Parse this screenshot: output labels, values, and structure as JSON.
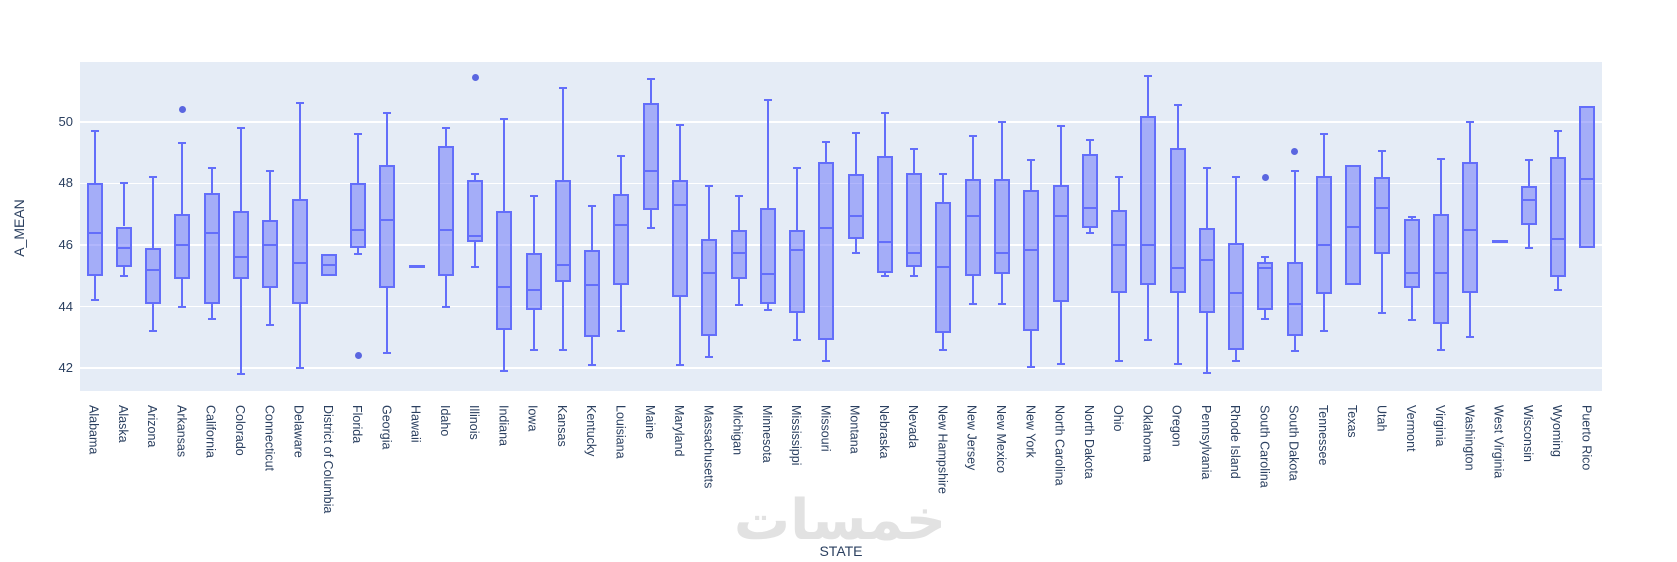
{
  "watermark": {
    "text": "خمسات"
  },
  "chart_data": {
    "type": "box",
    "title": "",
    "xlabel": "STATE",
    "ylabel": "A_MEAN",
    "ylim": [
      41.26,
      51.94
    ],
    "yticks": [
      42,
      44,
      46,
      48,
      50
    ],
    "grid": true,
    "legend_position": "none",
    "plot_bg": "#e5ecf6",
    "grid_color": "#ffffff",
    "box_line_color": "#636efa",
    "box_fill_color": "rgba(99,110,250,0.5)",
    "outlier_color": "#5a66e0",
    "text_color": "#2a3f5f",
    "categories": [
      "Alabama",
      "Alaska",
      "Arizona",
      "Arkansas",
      "California",
      "Colorado",
      "Connecticut",
      "Delaware",
      "District of Columbia",
      "Florida",
      "Georgia",
      "Hawaii",
      "Idaho",
      "Illinois",
      "Indiana",
      "Iowa",
      "Kansas",
      "Kentucky",
      "Louisiana",
      "Maine",
      "Maryland",
      "Massachusetts",
      "Michigan",
      "Minnesota",
      "Mississippi",
      "Missouri",
      "Montana",
      "Nebraska",
      "Nevada",
      "New Hampshire",
      "New Jersey",
      "New Mexico",
      "New York",
      "North Carolina",
      "North Dakota",
      "Ohio",
      "Oklahoma",
      "Oregon",
      "Pennsylvania",
      "Rhode Island",
      "South Carolina",
      "South Dakota",
      "Tennessee",
      "Texas",
      "Utah",
      "Vermont",
      "Virginia",
      "Washington",
      "West Virginia",
      "Wisconsin",
      "Wyoming",
      "Puerto Rico"
    ],
    "series": [
      {
        "state": "Alabama",
        "low": 44.2,
        "q1": 45.0,
        "median": 46.4,
        "q3": 48.0,
        "high": 49.7,
        "outliers": []
      },
      {
        "state": "Alaska",
        "low": 45.0,
        "q1": 45.3,
        "median": 45.9,
        "q3": 46.6,
        "high": 48.0,
        "outliers": []
      },
      {
        "state": "Arizona",
        "low": 43.2,
        "q1": 44.1,
        "median": 45.2,
        "q3": 45.9,
        "high": 48.2,
        "outliers": []
      },
      {
        "state": "Arkansas",
        "low": 44.0,
        "q1": 44.9,
        "median": 46.0,
        "q3": 47.0,
        "high": 49.3,
        "outliers": [
          50.4
        ]
      },
      {
        "state": "California",
        "low": 43.6,
        "q1": 44.1,
        "median": 46.4,
        "q3": 47.7,
        "high": 48.5,
        "outliers": []
      },
      {
        "state": "Colorado",
        "low": 41.8,
        "q1": 44.9,
        "median": 45.6,
        "q3": 47.1,
        "high": 49.8,
        "outliers": []
      },
      {
        "state": "Connecticut",
        "low": 43.4,
        "q1": 44.6,
        "median": 46.0,
        "q3": 46.8,
        "high": 48.4,
        "outliers": []
      },
      {
        "state": "Delaware",
        "low": 42.0,
        "q1": 44.1,
        "median": 45.4,
        "q3": 47.5,
        "high": 50.6,
        "outliers": []
      },
      {
        "state": "District of Columbia",
        "low": 45.0,
        "q1": 45.0,
        "median": 45.35,
        "q3": 45.7,
        "high": 45.7,
        "outliers": []
      },
      {
        "state": "Florida",
        "low": 45.7,
        "q1": 45.9,
        "median": 46.5,
        "q3": 48.0,
        "high": 49.6,
        "outliers": [
          42.4
        ]
      },
      {
        "state": "Georgia",
        "low": 42.5,
        "q1": 44.6,
        "median": 46.8,
        "q3": 48.6,
        "high": 50.3,
        "outliers": []
      },
      {
        "state": "Hawaii",
        "low": 45.3,
        "q1": 45.3,
        "median": 45.3,
        "q3": 45.3,
        "high": 45.3,
        "outliers": []
      },
      {
        "state": "Idaho",
        "low": 44.0,
        "q1": 45.0,
        "median": 46.5,
        "q3": 49.2,
        "high": 49.8,
        "outliers": []
      },
      {
        "state": "Illinois",
        "low": 45.3,
        "q1": 46.1,
        "median": 46.3,
        "q3": 48.1,
        "high": 48.3,
        "outliers": [
          51.45
        ]
      },
      {
        "state": "Indiana",
        "low": 41.9,
        "q1": 43.25,
        "median": 44.65,
        "q3": 47.1,
        "high": 50.1,
        "outliers": []
      },
      {
        "state": "Iowa",
        "low": 42.6,
        "q1": 43.9,
        "median": 44.55,
        "q3": 45.75,
        "high": 47.6,
        "outliers": []
      },
      {
        "state": "Kansas",
        "low": 42.6,
        "q1": 44.8,
        "median": 45.35,
        "q3": 48.1,
        "high": 51.1,
        "outliers": []
      },
      {
        "state": "Kentucky",
        "low": 42.1,
        "q1": 43.0,
        "median": 44.7,
        "q3": 45.85,
        "high": 47.25,
        "outliers": []
      },
      {
        "state": "Louisiana",
        "low": 43.2,
        "q1": 44.7,
        "median": 46.65,
        "q3": 47.65,
        "high": 48.9,
        "outliers": []
      },
      {
        "state": "Maine",
        "low": 46.55,
        "q1": 47.15,
        "median": 48.4,
        "q3": 50.6,
        "high": 51.4,
        "outliers": []
      },
      {
        "state": "Maryland",
        "low": 42.1,
        "q1": 44.3,
        "median": 47.3,
        "q3": 48.1,
        "high": 49.9,
        "outliers": []
      },
      {
        "state": "Massachusetts",
        "low": 42.35,
        "q1": 43.05,
        "median": 45.1,
        "q3": 46.2,
        "high": 47.9,
        "outliers": []
      },
      {
        "state": "Michigan",
        "low": 44.05,
        "q1": 44.9,
        "median": 45.75,
        "q3": 46.5,
        "high": 47.6,
        "outliers": []
      },
      {
        "state": "Minnesota",
        "low": 43.9,
        "q1": 44.1,
        "median": 45.05,
        "q3": 47.2,
        "high": 50.7,
        "outliers": []
      },
      {
        "state": "Mississippi",
        "low": 42.9,
        "q1": 43.8,
        "median": 45.85,
        "q3": 46.5,
        "high": 48.5,
        "outliers": []
      },
      {
        "state": "Missouri",
        "low": 42.25,
        "q1": 42.9,
        "median": 46.55,
        "q3": 48.7,
        "high": 49.35,
        "outliers": []
      },
      {
        "state": "Montana",
        "low": 45.75,
        "q1": 46.2,
        "median": 46.95,
        "q3": 48.3,
        "high": 49.65,
        "outliers": []
      },
      {
        "state": "Nebraska",
        "low": 45.0,
        "q1": 45.1,
        "median": 46.1,
        "q3": 48.9,
        "high": 50.3,
        "outliers": []
      },
      {
        "state": "Nevada",
        "low": 45.0,
        "q1": 45.3,
        "median": 45.75,
        "q3": 48.35,
        "high": 49.1,
        "outliers": []
      },
      {
        "state": "New Hampshire",
        "low": 42.6,
        "q1": 43.15,
        "median": 45.3,
        "q3": 47.4,
        "high": 48.3,
        "outliers": []
      },
      {
        "state": "New Jersey",
        "low": 44.1,
        "q1": 45.0,
        "median": 46.95,
        "q3": 48.15,
        "high": 49.55,
        "outliers": []
      },
      {
        "state": "New Mexico",
        "low": 44.1,
        "q1": 45.05,
        "median": 45.75,
        "q3": 48.15,
        "high": 50.0,
        "outliers": []
      },
      {
        "state": "New York",
        "low": 42.05,
        "q1": 43.2,
        "median": 45.85,
        "q3": 47.8,
        "high": 48.75,
        "outliers": []
      },
      {
        "state": "North Carolina",
        "low": 42.15,
        "q1": 44.15,
        "median": 46.95,
        "q3": 47.95,
        "high": 49.85,
        "outliers": []
      },
      {
        "state": "North Dakota",
        "low": 46.4,
        "q1": 46.55,
        "median": 47.2,
        "q3": 48.95,
        "high": 49.4,
        "outliers": []
      },
      {
        "state": "Ohio",
        "low": 42.25,
        "q1": 44.45,
        "median": 46.0,
        "q3": 47.15,
        "high": 48.2,
        "outliers": []
      },
      {
        "state": "Oklahoma",
        "low": 42.9,
        "q1": 44.7,
        "median": 46.0,
        "q3": 50.2,
        "high": 51.5,
        "outliers": []
      },
      {
        "state": "Oregon",
        "low": 42.15,
        "q1": 44.45,
        "median": 45.25,
        "q3": 49.15,
        "high": 50.55,
        "outliers": []
      },
      {
        "state": "Pennsylvania",
        "low": 41.85,
        "q1": 43.8,
        "median": 45.5,
        "q3": 46.55,
        "high": 48.5,
        "outliers": []
      },
      {
        "state": "Rhode Island",
        "low": 42.25,
        "q1": 42.6,
        "median": 44.45,
        "q3": 46.05,
        "high": 48.2,
        "outliers": []
      },
      {
        "state": "South Carolina",
        "low": 43.6,
        "q1": 43.9,
        "median": 45.25,
        "q3": 45.45,
        "high": 45.6,
        "outliers": [
          48.2
        ]
      },
      {
        "state": "South Dakota",
        "low": 42.55,
        "q1": 43.05,
        "median": 44.1,
        "q3": 45.45,
        "high": 48.4,
        "outliers": [
          49.05
        ]
      },
      {
        "state": "Tennessee",
        "low": 43.2,
        "q1": 44.4,
        "median": 46.0,
        "q3": 48.25,
        "high": 49.6,
        "outliers": []
      },
      {
        "state": "Texas",
        "low": 44.7,
        "q1": 44.7,
        "median": 46.6,
        "q3": 48.6,
        "high": 48.6,
        "outliers": []
      },
      {
        "state": "Utah",
        "low": 43.8,
        "q1": 45.7,
        "median": 47.2,
        "q3": 48.2,
        "high": 49.05,
        "outliers": []
      },
      {
        "state": "Vermont",
        "low": 43.55,
        "q1": 44.6,
        "median": 45.1,
        "q3": 46.85,
        "high": 46.9,
        "outliers": []
      },
      {
        "state": "Virginia",
        "low": 42.6,
        "q1": 43.45,
        "median": 45.1,
        "q3": 47.0,
        "high": 48.8,
        "outliers": []
      },
      {
        "state": "Washington",
        "low": 43.0,
        "q1": 44.45,
        "median": 46.5,
        "q3": 48.7,
        "high": 50.0,
        "outliers": []
      },
      {
        "state": "West Virginia",
        "low": 46.1,
        "q1": 46.1,
        "median": 46.1,
        "q3": 46.1,
        "high": 46.1,
        "outliers": []
      },
      {
        "state": "Wisconsin",
        "low": 45.9,
        "q1": 46.65,
        "median": 47.45,
        "q3": 47.9,
        "high": 48.75,
        "outliers": []
      },
      {
        "state": "Wyoming",
        "low": 44.55,
        "q1": 44.95,
        "median": 46.2,
        "q3": 48.85,
        "high": 49.7,
        "outliers": []
      },
      {
        "state": "Puerto Rico",
        "low": 45.9,
        "q1": 45.9,
        "median": 48.15,
        "q3": 50.5,
        "high": 50.5,
        "outliers": []
      }
    ]
  }
}
